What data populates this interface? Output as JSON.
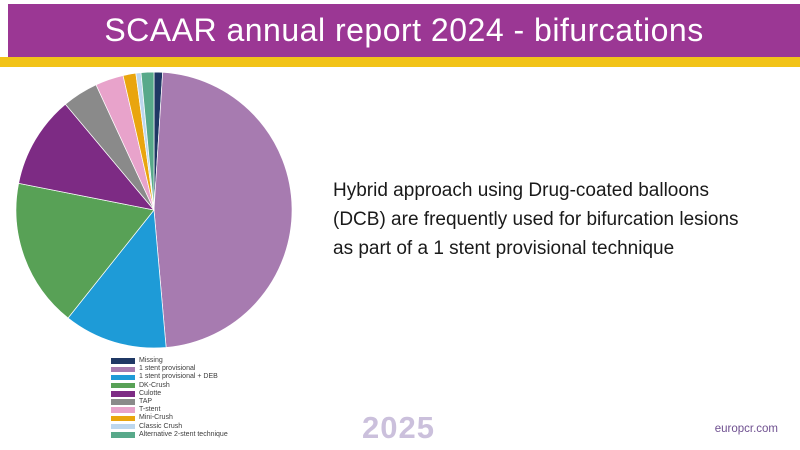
{
  "header": {
    "title": "SCAAR annual report 2024 - bifurcations"
  },
  "colors": {
    "header_bg": "#9B3794",
    "accent_bar": "#F2C318",
    "title_text": "#FFFFFF",
    "body_text": "#1A1A1A",
    "watermark_text": "#CBC0DC",
    "footer_link_text": "#6F5090"
  },
  "chart_data": {
    "type": "pie",
    "title": "",
    "direction": "clockwise",
    "start_angle_deg": 0,
    "legend_position": "bottom-left",
    "categories": [
      "Missing",
      "1 stent provisional",
      "1 stent provisional + DEB",
      "DK-Crush",
      "Culotte",
      "TAP",
      "T-stent",
      "Mini-Crush",
      "Classic Crush",
      "Alternative 2-stent technique"
    ],
    "values": [
      1.0,
      47.6,
      12.1,
      17.4,
      10.8,
      4.2,
      3.3,
      1.5,
      0.6,
      1.5
    ],
    "colors": [
      "#1F3864",
      "#A77BB0",
      "#1E9BD7",
      "#58A156",
      "#7D2B84",
      "#8A8A8A",
      "#E8A3CB",
      "#E9A50E",
      "#BDD7EE",
      "#58A98A"
    ]
  },
  "annotation": {
    "lines": [
      "Hybrid approach using Drug-coated balloons",
      "(DCB) are frequently used for bifurcation lesions",
      "as part of a 1 stent provisional technique"
    ]
  },
  "footer": {
    "year": "2025",
    "website": "europcr.com"
  }
}
